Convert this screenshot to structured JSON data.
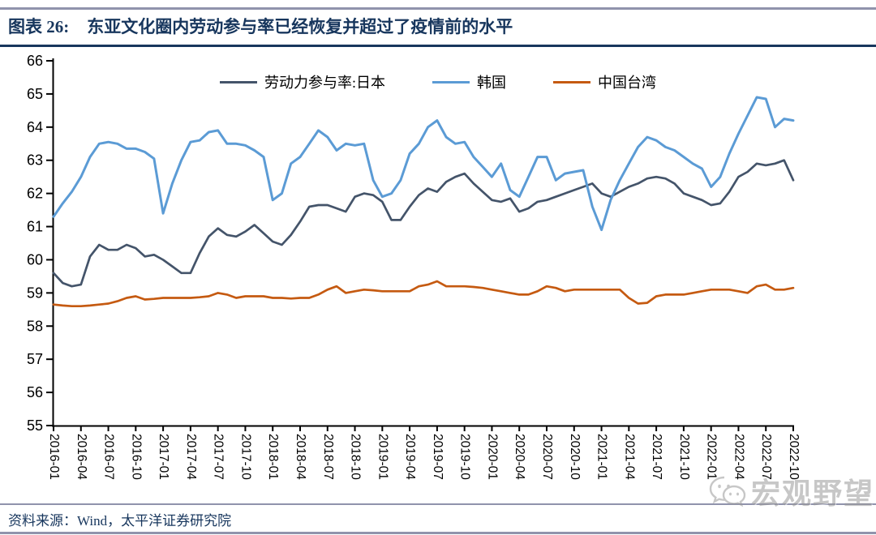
{
  "header": {
    "title_prefix": "图表 26:",
    "title": "东亚文化圈内劳动参与率已经恢复并超过了疫情前的水平"
  },
  "footer": {
    "source": "资料来源：Wind，太平洋证券研究院"
  },
  "watermark": {
    "text": "宏观野望",
    "icon": "wechat-icon"
  },
  "colors": {
    "title_text": "#17365D",
    "rule_gray": "#9093AC",
    "rule_navy": "#17365D",
    "axis": "#000000",
    "japan_line": "#44546A",
    "korea_line": "#5B9BD5",
    "taiwan_line": "#C55A11",
    "watermark_gray": "#9A9A9A"
  },
  "chart_data": {
    "type": "line",
    "title": "东亚文化圈内劳动参与率已经恢复并超过了疫情前的水平",
    "xlabel": "",
    "ylabel": "",
    "x_start": "2016-01",
    "x_end": "2022-10",
    "x_frequency": "monthly",
    "ylim": [
      55,
      66
    ],
    "y_ticks": [
      66,
      65,
      64,
      63,
      62,
      61,
      60,
      59,
      58,
      57,
      56,
      55
    ],
    "x_tick_labels": [
      "2016-01",
      "2016-04",
      "2016-07",
      "2016-10",
      "2017-01",
      "2017-04",
      "2017-07",
      "2017-10",
      "2018-01",
      "2018-04",
      "2018-07",
      "2018-10",
      "2019-01",
      "2019-04",
      "2019-07",
      "2019-10",
      "2020-01",
      "2020-04",
      "2020-07",
      "2020-10",
      "2021-01",
      "2021-04",
      "2021-07",
      "2021-10",
      "2022-01",
      "2022-04",
      "2022-07",
      "2022-10"
    ],
    "grid": false,
    "legend_position": "top-center",
    "series": [
      {
        "name": "劳动力参与率:日本",
        "color": "#44546A",
        "values": [
          59.6,
          59.3,
          59.2,
          59.25,
          60.1,
          60.45,
          60.3,
          60.3,
          60.45,
          60.35,
          60.1,
          60.15,
          60.0,
          59.8,
          59.6,
          59.6,
          60.2,
          60.7,
          60.95,
          60.75,
          60.7,
          60.85,
          61.05,
          60.8,
          60.55,
          60.45,
          60.75,
          61.15,
          61.6,
          61.65,
          61.65,
          61.55,
          61.45,
          61.9,
          62.0,
          61.95,
          61.75,
          61.2,
          61.2,
          61.6,
          61.95,
          62.15,
          62.05,
          62.35,
          62.5,
          62.6,
          62.3,
          62.05,
          61.8,
          61.75,
          61.85,
          61.45,
          61.55,
          61.75,
          61.8,
          61.9,
          62.0,
          62.1,
          62.2,
          62.3,
          62.0,
          61.9,
          62.05,
          62.2,
          62.3,
          62.45,
          62.5,
          62.45,
          62.3,
          62.0,
          61.9,
          61.8,
          61.65,
          61.7,
          62.05,
          62.5,
          62.65,
          62.9,
          62.85,
          62.9,
          63.0,
          62.4
        ]
      },
      {
        "name": "韩国",
        "color": "#5B9BD5",
        "values": [
          61.3,
          61.7,
          62.05,
          62.5,
          63.1,
          63.5,
          63.55,
          63.5,
          63.35,
          63.35,
          63.25,
          63.05,
          61.4,
          62.3,
          63.0,
          63.55,
          63.6,
          63.85,
          63.9,
          63.5,
          63.5,
          63.45,
          63.3,
          63.1,
          61.8,
          62.0,
          62.9,
          63.1,
          63.5,
          63.9,
          63.7,
          63.3,
          63.5,
          63.45,
          63.5,
          62.4,
          61.9,
          62.0,
          62.4,
          63.2,
          63.5,
          64.0,
          64.2,
          63.7,
          63.5,
          63.55,
          63.1,
          62.8,
          62.5,
          62.9,
          62.1,
          61.9,
          62.5,
          63.1,
          63.1,
          62.4,
          62.6,
          62.65,
          62.7,
          61.6,
          60.9,
          61.8,
          62.4,
          62.9,
          63.4,
          63.7,
          63.6,
          63.4,
          63.3,
          63.1,
          62.9,
          62.75,
          62.2,
          62.5,
          63.2,
          63.8,
          64.35,
          64.9,
          64.85,
          64.0,
          64.25,
          64.2
        ]
      },
      {
        "name": "中国台湾",
        "color": "#C55A11",
        "values": [
          58.65,
          58.62,
          58.6,
          58.6,
          58.62,
          58.65,
          58.68,
          58.75,
          58.85,
          58.9,
          58.8,
          58.82,
          58.85,
          58.85,
          58.85,
          58.85,
          58.87,
          58.9,
          59.0,
          58.95,
          58.85,
          58.9,
          58.9,
          58.9,
          58.85,
          58.85,
          58.83,
          58.85,
          58.85,
          58.95,
          59.1,
          59.2,
          59.0,
          59.05,
          59.1,
          59.08,
          59.05,
          59.05,
          59.05,
          59.05,
          59.2,
          59.25,
          59.35,
          59.2,
          59.2,
          59.2,
          59.18,
          59.15,
          59.1,
          59.05,
          59.0,
          58.95,
          58.95,
          59.05,
          59.2,
          59.15,
          59.05,
          59.1,
          59.1,
          59.1,
          59.1,
          59.1,
          59.1,
          58.85,
          58.68,
          58.7,
          58.9,
          58.95,
          58.95,
          58.95,
          59.0,
          59.05,
          59.1,
          59.1,
          59.1,
          59.05,
          59.0,
          59.2,
          59.25,
          59.1,
          59.1,
          59.15
        ]
      }
    ]
  }
}
